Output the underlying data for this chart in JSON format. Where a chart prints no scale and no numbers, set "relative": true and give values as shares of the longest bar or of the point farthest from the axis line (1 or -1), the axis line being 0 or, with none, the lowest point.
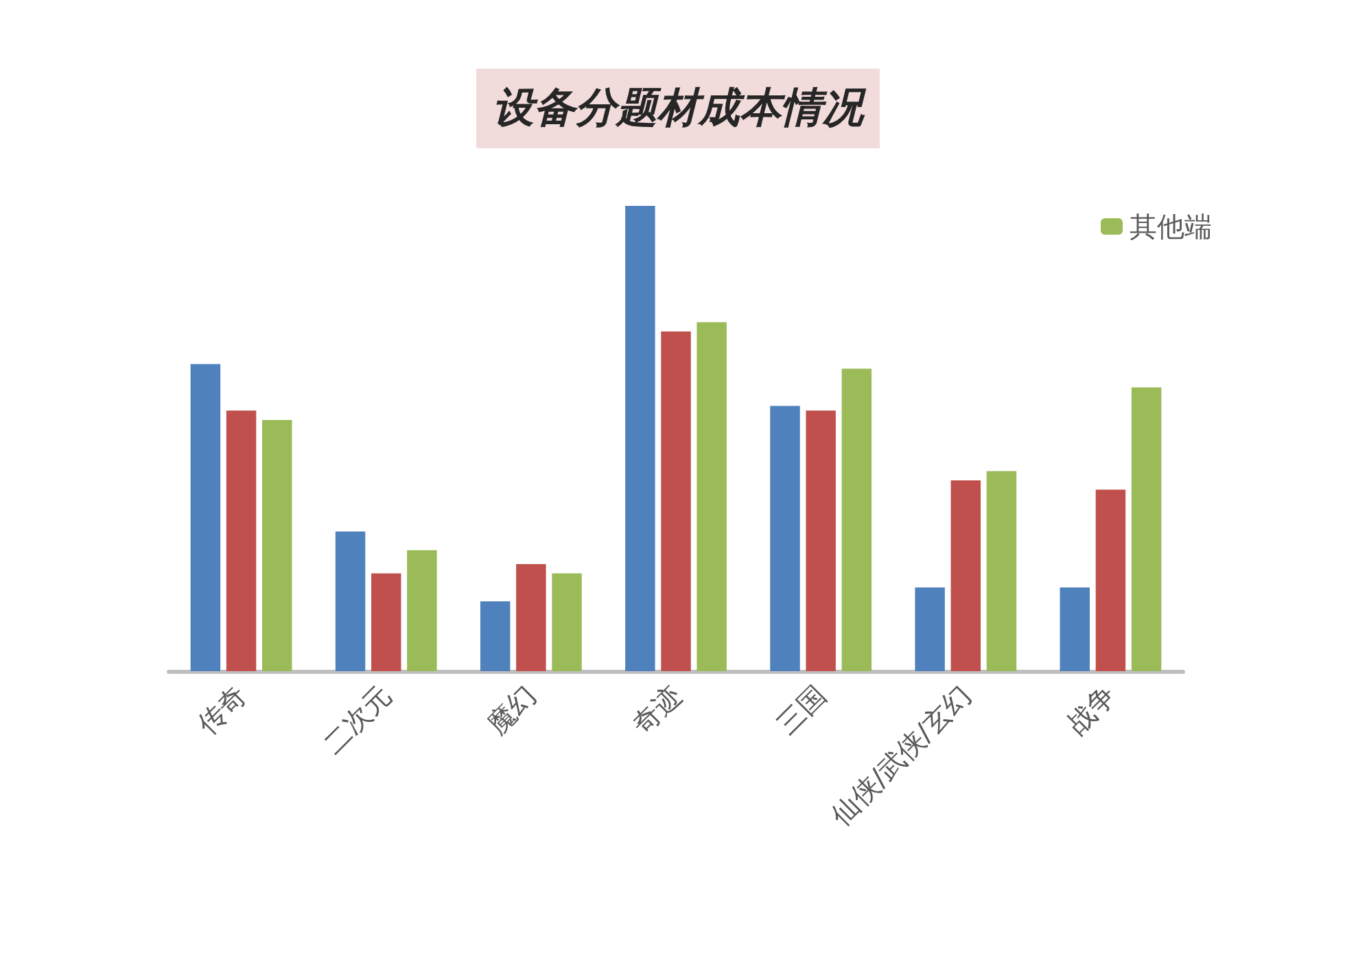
{
  "chart_data": {
    "type": "bar",
    "title": "设备分题材成本情况",
    "relative": true,
    "categories": [
      "传奇",
      "二次元",
      "魔幻",
      "奇迹",
      "三国",
      "仙侠/武侠/玄幻",
      "战争"
    ],
    "series": [
      {
        "color": "#4f81bd",
        "values": [
          0.66,
          0.3,
          0.15,
          1,
          0.57,
          0.18,
          0.18
        ]
      },
      {
        "color": "#c0504d",
        "values": [
          0.56,
          0.21,
          0.23,
          0.73,
          0.56,
          0.41,
          0.39
        ]
      },
      {
        "name": "其他端",
        "color": "#9bbb59",
        "values": [
          0.54,
          0.26,
          0.21,
          0.75,
          0.65,
          0.43,
          0.61
        ]
      }
    ],
    "legend": "top right"
  }
}
